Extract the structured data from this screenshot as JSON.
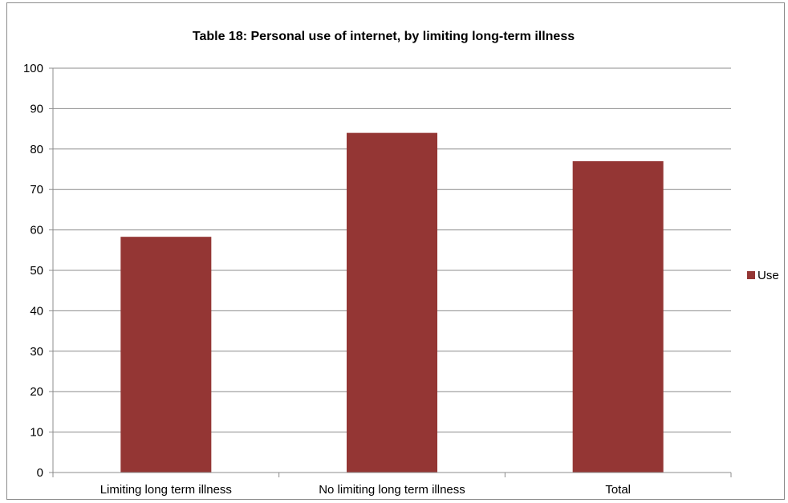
{
  "chart_data": {
    "type": "bar",
    "title": "Table 18: Personal use of internet, by limiting long-term illness",
    "categories": [
      "Limiting long term illness",
      "No limiting long term illness",
      "Total"
    ],
    "series": [
      {
        "name": "Use",
        "color": "#943634",
        "values": [
          58.3,
          84,
          77
        ]
      }
    ],
    "ylim": [
      0,
      100
    ],
    "yticks": [
      "0",
      "10",
      "20",
      "30",
      "40",
      "50",
      "60",
      "70",
      "80",
      "90",
      "100"
    ],
    "grid": true,
    "legend": "right"
  }
}
